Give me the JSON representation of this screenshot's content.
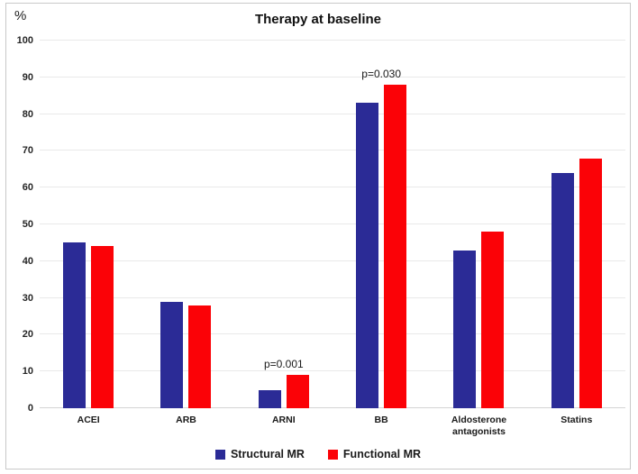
{
  "title": "Therapy at baseline",
  "y_axis": {
    "unit_label": "%",
    "ticks": [
      100,
      90,
      80,
      70,
      60,
      50,
      40,
      30,
      20,
      10,
      0
    ]
  },
  "legend": {
    "items": [
      {
        "label": "Structural MR",
        "color": "#2b2b96"
      },
      {
        "label": "Functional MR",
        "color": "#fb0207"
      }
    ]
  },
  "chart_data": {
    "type": "bar",
    "title": "Therapy at baseline",
    "xlabel": "",
    "ylabel": "%",
    "ylim": [
      0,
      100
    ],
    "grid": true,
    "legend_position": "bottom",
    "categories": [
      "ACEI",
      "ARB",
      "ARNI",
      "BB",
      "Aldosterone antagonists",
      "Statins"
    ],
    "series": [
      {
        "name": "Structural MR",
        "color": "#2b2b96",
        "values": [
          45,
          29,
          5,
          83,
          43,
          64
        ]
      },
      {
        "name": "Functional MR",
        "color": "#fb0207",
        "values": [
          44,
          28,
          9,
          88,
          48,
          68
        ]
      }
    ],
    "annotations": [
      {
        "text": "p=0.001",
        "category": "ARNI"
      },
      {
        "text": "p=0.030",
        "category": "BB"
      }
    ]
  }
}
